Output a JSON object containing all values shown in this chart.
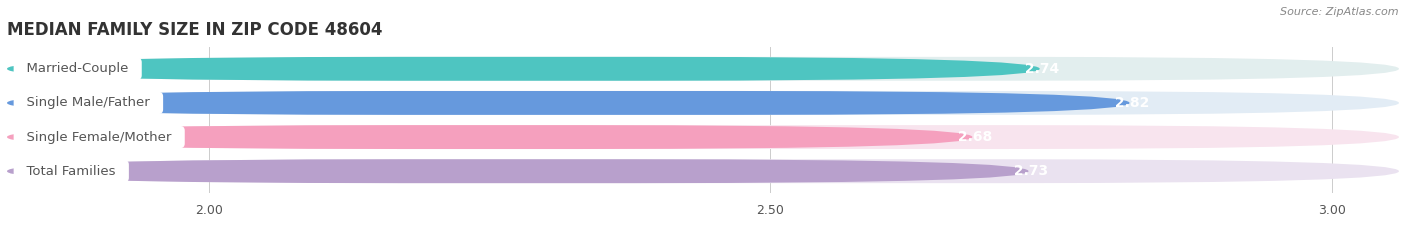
{
  "title": "MEDIAN FAMILY SIZE IN ZIP CODE 48604",
  "source": "Source: ZipAtlas.com",
  "categories": [
    "Married-Couple",
    "Single Male/Father",
    "Single Female/Mother",
    "Total Families"
  ],
  "values": [
    2.74,
    2.82,
    2.68,
    2.73
  ],
  "bar_colors": [
    "#4EC5C1",
    "#6699DD",
    "#F5A0BE",
    "#B8A0CC"
  ],
  "bar_bg_colors": [
    "#E2EEEE",
    "#E2ECF5",
    "#F8E4EE",
    "#EAE2F0"
  ],
  "xlim_left": 1.82,
  "xlim_right": 3.06,
  "xticks": [
    2.0,
    2.5,
    3.0
  ],
  "xtick_labels": [
    "2.00",
    "2.50",
    "3.00"
  ],
  "label_color": "#555555",
  "title_color": "#333333",
  "source_color": "#888888",
  "value_fontsize": 10,
  "label_fontsize": 9.5,
  "title_fontsize": 12,
  "bar_height": 0.7,
  "bg_color": "#FFFFFF"
}
